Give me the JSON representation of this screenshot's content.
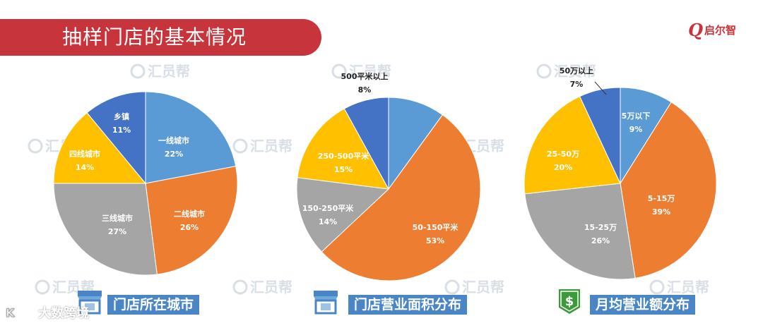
{
  "header": {
    "title": "抽样门店的基本情况",
    "logo_mark": "Q",
    "logo_text": "启尔智"
  },
  "watermark": {
    "text": "汇员帮",
    "corner_text": "大数跨境"
  },
  "colors": {
    "blue": "#5b9bd5",
    "orange": "#ed7d31",
    "gray": "#a5a5a5",
    "yellow": "#ffc000",
    "darkblue": "#4472c4",
    "caption_bg": "#4a86c5",
    "title_bg": "#c8343b"
  },
  "charts": [
    {
      "caption": "门店所在城市",
      "icon": "storefront-icon"
    },
    {
      "caption": "门店营业面积分布",
      "icon": "storefront-icon"
    },
    {
      "caption": "月均营业额分布",
      "icon": "dollar-badge-icon"
    }
  ],
  "chart_data": [
    {
      "type": "pie",
      "title": "门店所在城市",
      "slices": [
        {
          "label": "一线城市",
          "value": 22,
          "display": "22%",
          "color": "#5b9bd5"
        },
        {
          "label": "二线城市",
          "value": 26,
          "display": "26%",
          "color": "#ed7d31"
        },
        {
          "label": "三线城市",
          "value": 27,
          "display": "27%",
          "color": "#a5a5a5"
        },
        {
          "label": "四线城市",
          "value": 14,
          "display": "14%",
          "color": "#ffc000"
        },
        {
          "label": "乡镇",
          "value": 11,
          "display": "11%",
          "color": "#4472c4"
        }
      ]
    },
    {
      "type": "pie",
      "title": "门店营业面积分布",
      "slices": [
        {
          "label": "",
          "value": 10,
          "display": "",
          "color": "#5b9bd5"
        },
        {
          "label": "50-150平米",
          "value": 53,
          "display": "53%",
          "color": "#ed7d31"
        },
        {
          "label": "150-250平米",
          "value": 14,
          "display": "14%",
          "color": "#a5a5a5"
        },
        {
          "label": "250-500平米",
          "value": 15,
          "display": "15%",
          "color": "#ffc000"
        },
        {
          "label": "500平米以上",
          "value": 8,
          "display": "8%",
          "color": "#4472c4"
        }
      ]
    },
    {
      "type": "pie",
      "title": "月均营业额分布",
      "slices": [
        {
          "label": "5万以下",
          "value": 9,
          "display": "9%",
          "color": "#5b9bd5"
        },
        {
          "label": "5-15万",
          "value": 39,
          "display": "39%",
          "color": "#ed7d31"
        },
        {
          "label": "15-25万",
          "value": 26,
          "display": "26%",
          "color": "#a5a5a5"
        },
        {
          "label": "25-50万",
          "value": 20,
          "display": "20%",
          "color": "#ffc000"
        },
        {
          "label": "50万以上",
          "value": 7,
          "display": "7%",
          "color": "#4472c4"
        }
      ]
    }
  ]
}
